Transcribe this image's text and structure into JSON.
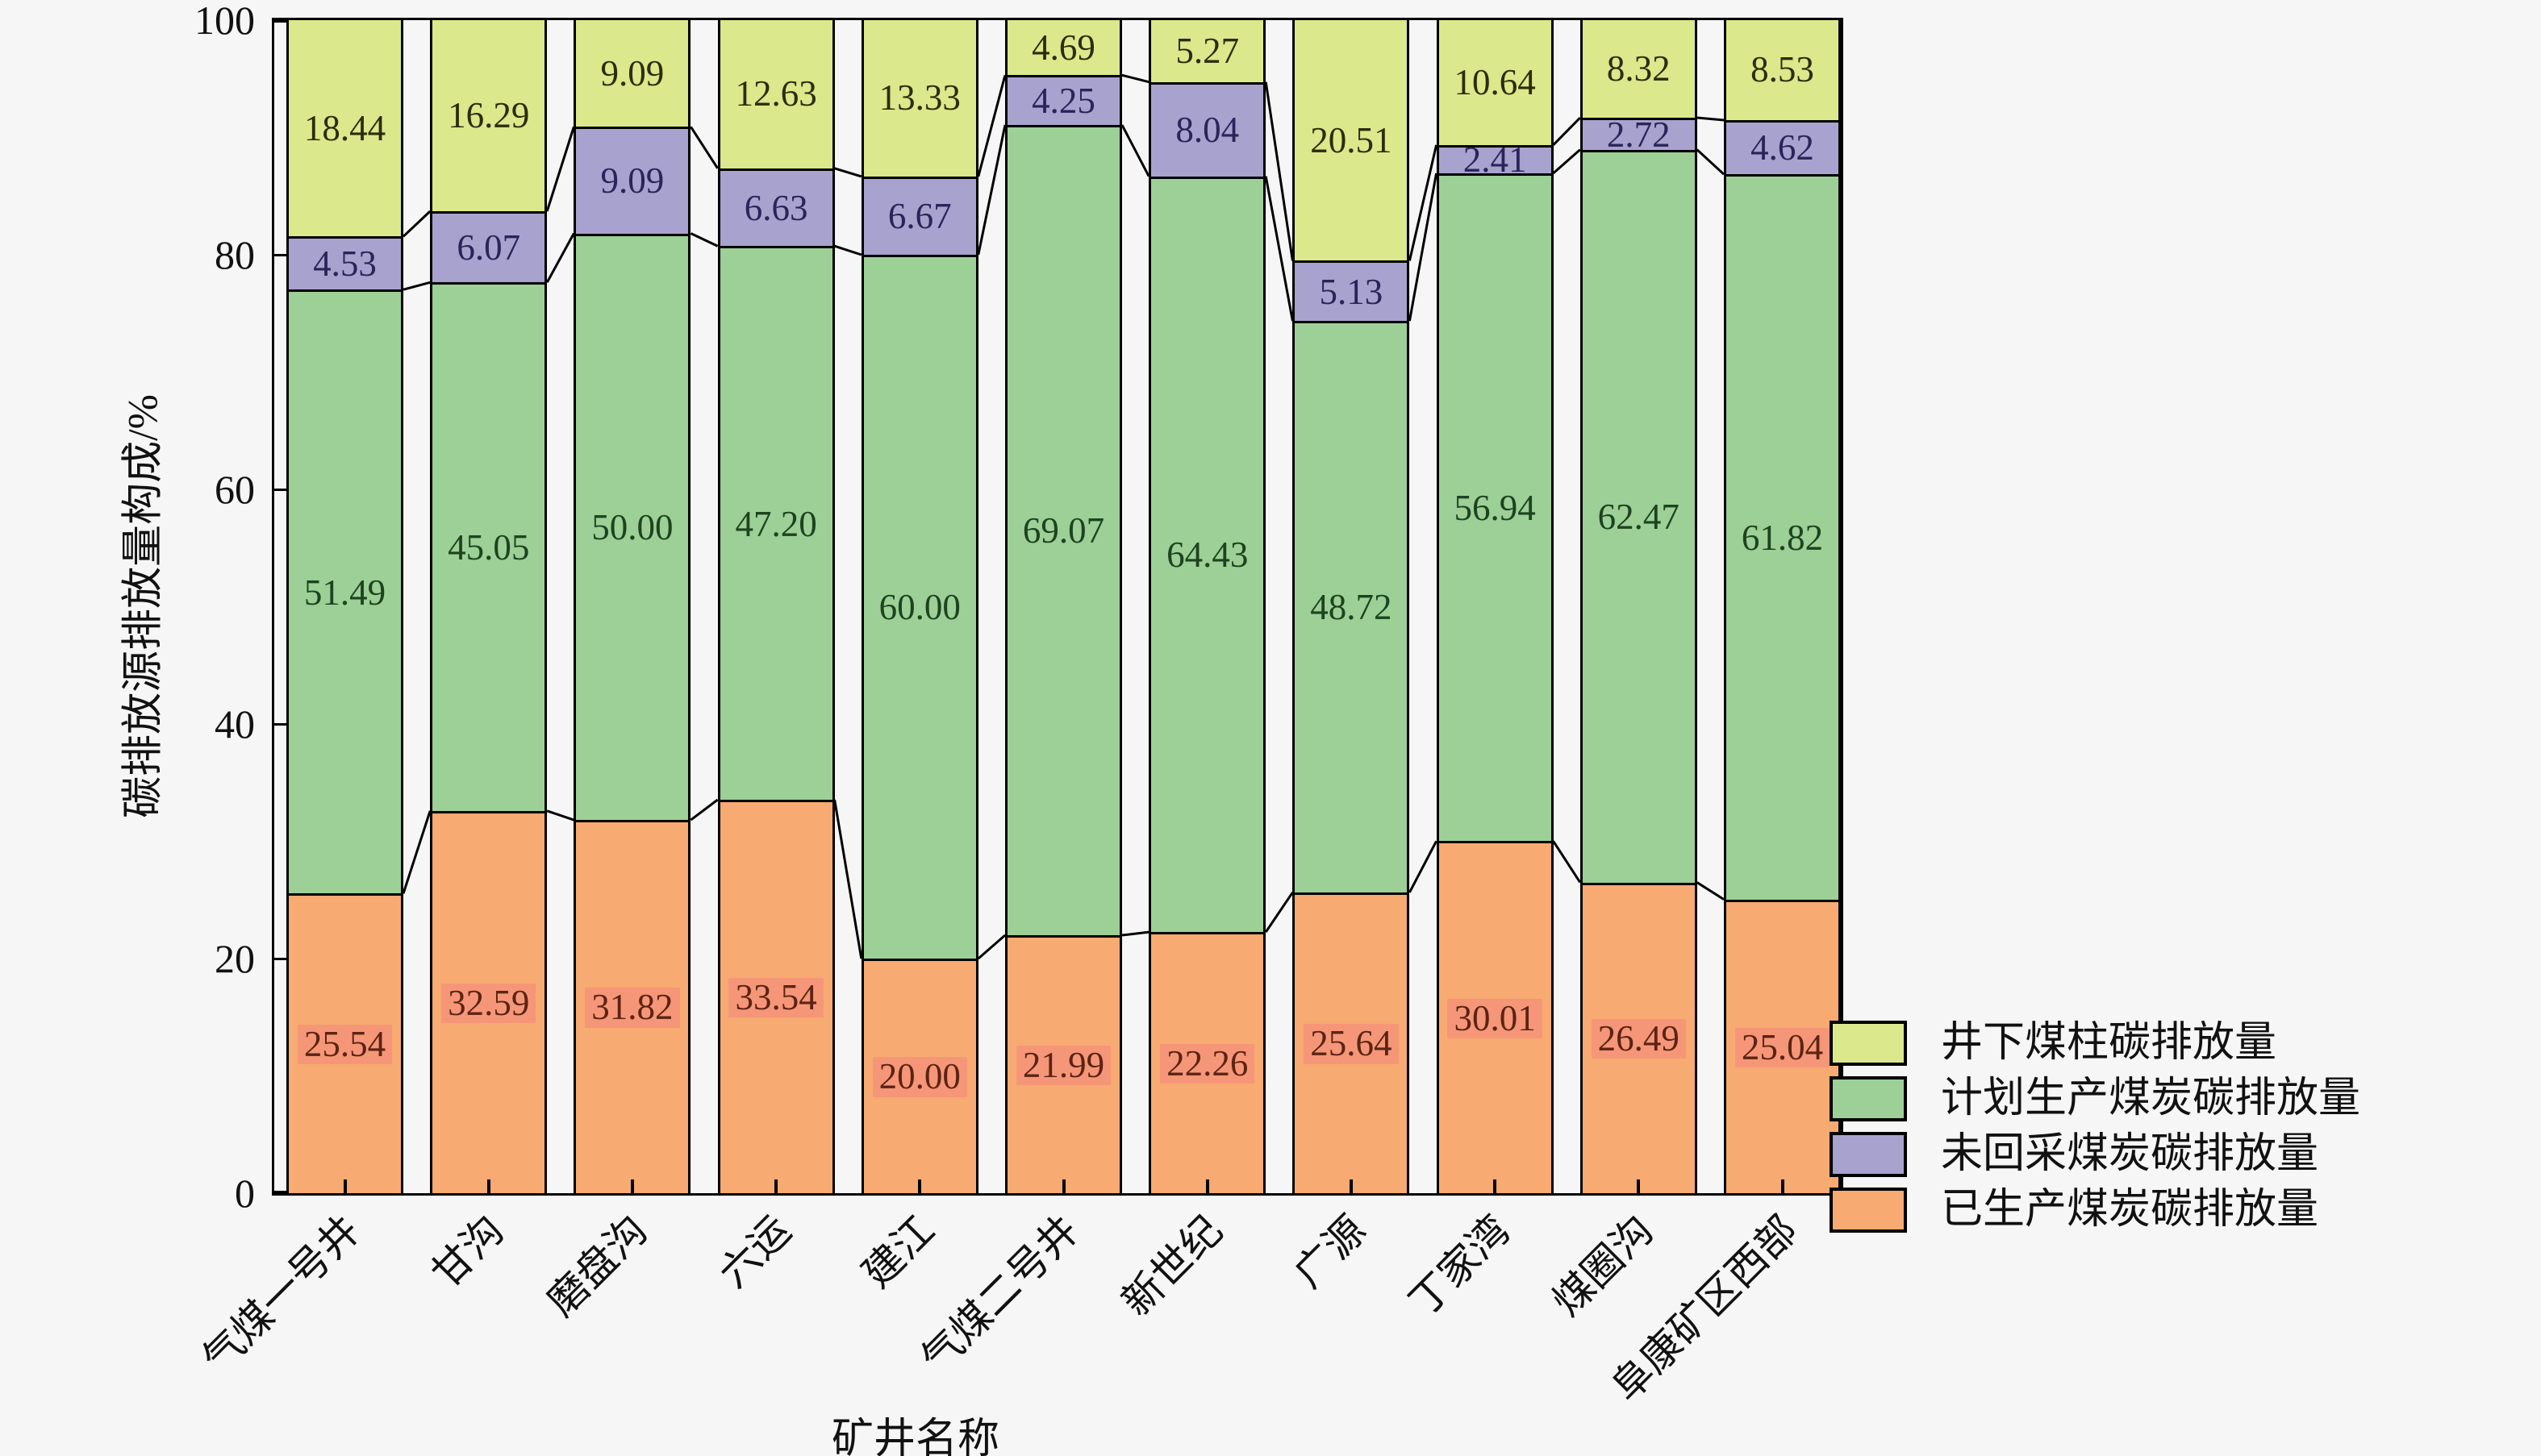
{
  "figure": {
    "background": "#f6f6f6",
    "axis_color": "#000000"
  },
  "chart_data": {
    "type": "bar",
    "stacked": true,
    "unit": "%",
    "title": "",
    "xlabel": "矿井名称",
    "ylabel": "碳排放源排放量构成/%",
    "ylim": [
      0,
      100
    ],
    "yticks": [
      0,
      20,
      40,
      60,
      80,
      100
    ],
    "grid": false,
    "connectors": true,
    "value_label_decimals": 2,
    "categories": [
      "气煤一号井",
      "甘沟",
      "磨盘沟",
      "六运",
      "建江",
      "气煤二号井",
      "新世纪",
      "广源",
      "丁家湾",
      "煤圈沟",
      "阜康矿区西部"
    ],
    "series": [
      {
        "name": "已生产煤炭碳排放量",
        "color": "#f7aa71",
        "label_color": "#5b2413",
        "label_bg": "rgba(245,133,126,0.55)",
        "values": [
          25.54,
          32.59,
          31.82,
          33.54,
          20.0,
          21.99,
          22.26,
          25.64,
          30.01,
          26.49,
          25.04
        ]
      },
      {
        "name": "计划生产煤炭碳排放量",
        "color": "#9cd096",
        "label_color": "#1d431f",
        "label_bg": "",
        "values": [
          51.49,
          45.05,
          50.0,
          47.2,
          60.0,
          69.07,
          64.43,
          48.72,
          56.94,
          62.47,
          61.82
        ]
      },
      {
        "name": "未回采煤炭碳排放量",
        "color": "#a8a2ce",
        "label_color": "#29255a",
        "label_bg": "",
        "values": [
          4.53,
          6.07,
          9.09,
          6.63,
          6.67,
          4.25,
          8.04,
          5.13,
          2.41,
          2.72,
          4.62
        ]
      },
      {
        "name": "井下煤柱碳排放量",
        "color": "#dbe88b",
        "label_color": "#2c2c08",
        "label_bg": "",
        "values": [
          18.44,
          16.29,
          9.09,
          12.63,
          13.33,
          4.69,
          5.27,
          20.51,
          10.64,
          8.32,
          8.53
        ]
      }
    ],
    "legend": {
      "position": "right-bottom",
      "items_top_to_bottom": [
        "井下煤柱碳排放量",
        "计划生产煤炭碳排放量",
        "未回采煤炭碳排放量",
        "已生产煤炭碳排放量"
      ]
    }
  }
}
